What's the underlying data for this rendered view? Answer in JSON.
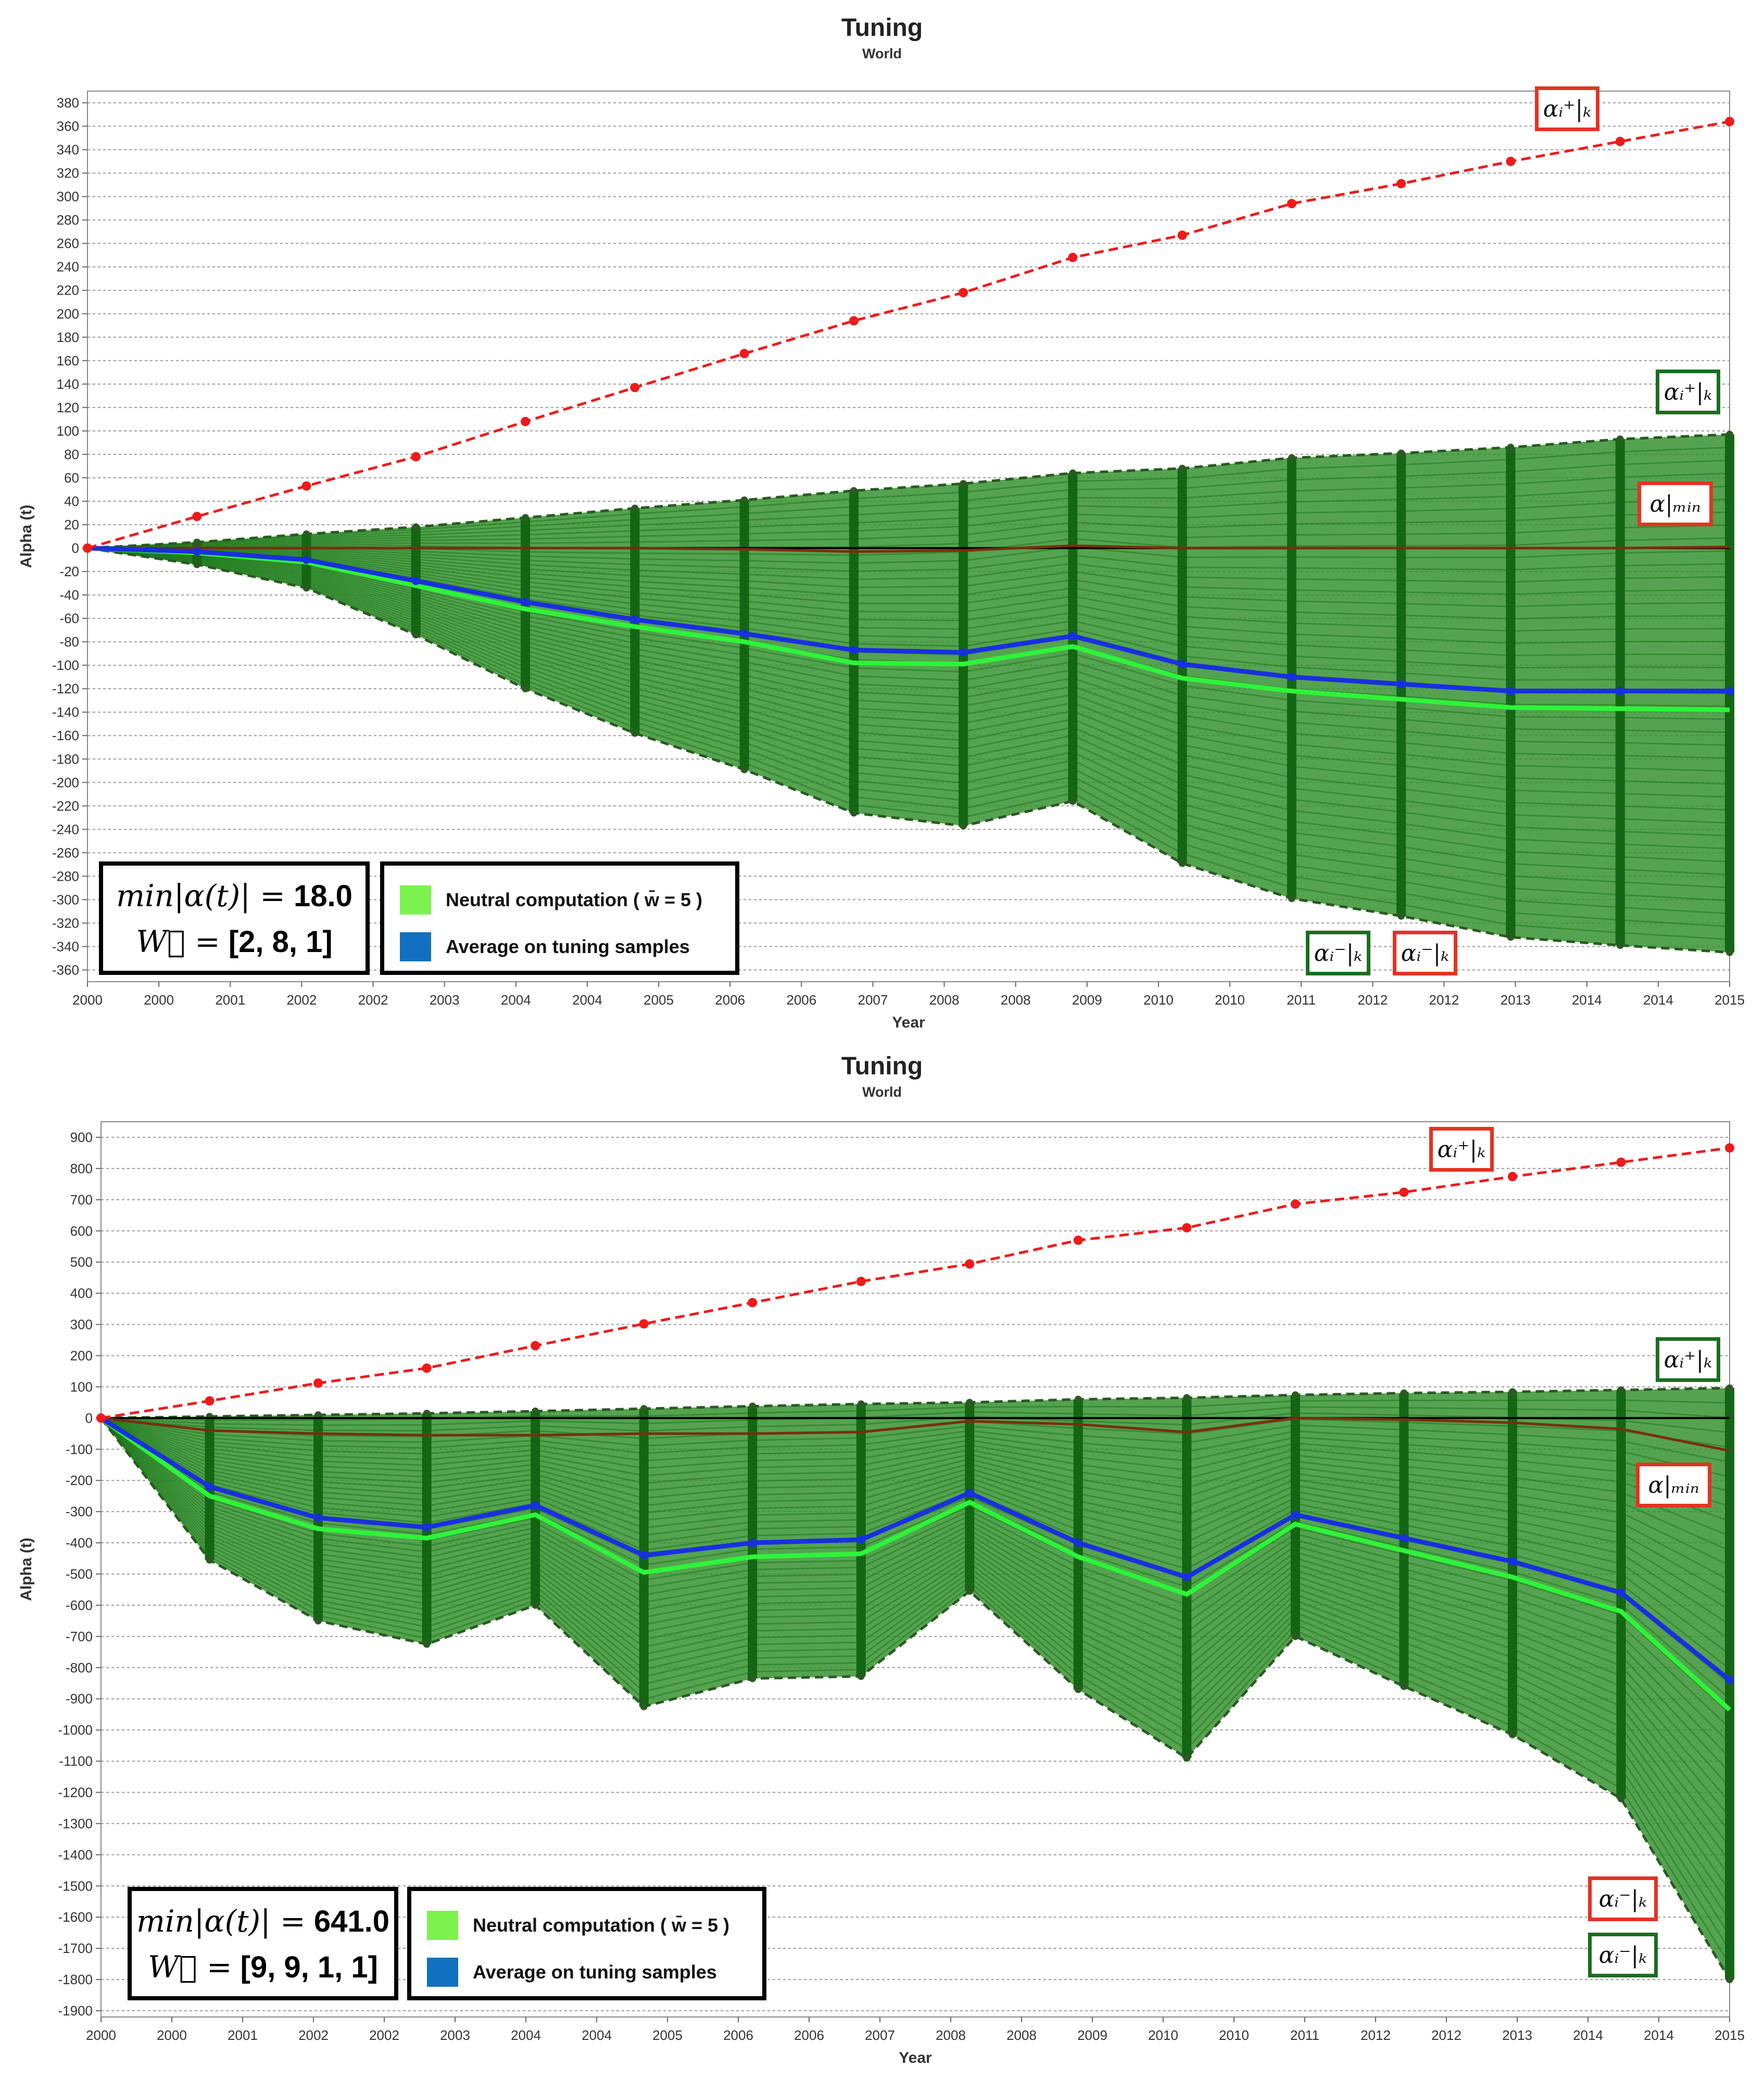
{
  "chart_data": [
    {
      "type": "line",
      "title": "Tuning",
      "subtitle": "World",
      "xlabel": "Year",
      "ylabel": "Alpha (t)",
      "ylim": [
        -370,
        390
      ],
      "y_tick_step": 20,
      "x_tick_labels": [
        "2000",
        "2000",
        "2001",
        "2002",
        "2002",
        "2003",
        "2004",
        "2004",
        "2005",
        "2006",
        "2006",
        "2007",
        "2008",
        "2008",
        "2009",
        "2010",
        "2010",
        "2011",
        "2012",
        "2012",
        "2013",
        "2014",
        "2014",
        "2015"
      ],
      "x": [
        0,
        1,
        2,
        3,
        4,
        5,
        6,
        7,
        8,
        9,
        10,
        11,
        12,
        13,
        14,
        15
      ],
      "grid": true,
      "series": [
        {
          "name": "alpha_plus_red",
          "values": [
            0,
            27,
            53,
            78,
            108,
            137,
            166,
            194,
            218,
            248,
            267,
            294,
            311,
            330,
            347,
            364
          ]
        },
        {
          "name": "alpha_plus_green",
          "values": [
            0,
            5,
            12,
            18,
            26,
            34,
            41,
            49,
            55,
            64,
            68,
            77,
            81,
            86,
            93,
            97
          ]
        },
        {
          "name": "alpha_min",
          "values": [
            0,
            0,
            0,
            0,
            0,
            0,
            -1,
            -3,
            -2,
            2,
            0,
            0,
            0,
            0,
            0,
            1
          ]
        },
        {
          "name": "Average on tuning samples",
          "values": [
            0,
            -3,
            -10,
            -28,
            -46,
            -61,
            -73,
            -87,
            -89,
            -75,
            -99,
            -110,
            -116,
            -122,
            -122,
            -122
          ]
        },
        {
          "name": "Neutral computation",
          "values": [
            0,
            -4,
            -12,
            -32,
            -52,
            -67,
            -80,
            -98,
            -99,
            -84,
            -111,
            -122,
            -129,
            -136,
            -137,
            -138
          ]
        },
        {
          "name": "alpha_minus",
          "values": [
            0,
            -14,
            -34,
            -74,
            -120,
            -158,
            -189,
            -226,
            -237,
            -216,
            -269,
            -299,
            -314,
            -332,
            -339,
            -345
          ]
        }
      ],
      "info": {
        "label": "min|α(t)| =",
        "min_value": "18.0",
        "w_label": "W⃗ =",
        "w_value": "[2, 8, 1]"
      },
      "legend": [
        {
          "label": "Neutral computation ( w̄ = 5 )",
          "color": "#7cf24f"
        },
        {
          "label": "Average on tuning samples",
          "color": "#1170c0"
        }
      ],
      "annotations": [
        {
          "label": "αᵢ⁺|ₖ",
          "color": "#e53222"
        },
        {
          "label": "αᵢ⁺|ₖ",
          "color": "#1b6e1f"
        },
        {
          "label": "α|ₘᵢₙ",
          "color": "#e53222"
        },
        {
          "label": "αᵢ⁻|ₖ",
          "color": "#1b6e1f"
        },
        {
          "label": "αᵢ⁻|ₖ",
          "color": "#e53222"
        }
      ]
    },
    {
      "type": "line",
      "title": "Tuning",
      "subtitle": "World",
      "xlabel": "Year",
      "ylabel": "Alpha (t)",
      "ylim": [
        -1920,
        950
      ],
      "y_tick_step": 100,
      "x_tick_labels": [
        "2000",
        "2000",
        "2001",
        "2002",
        "2002",
        "2003",
        "2004",
        "2004",
        "2005",
        "2006",
        "2006",
        "2007",
        "2008",
        "2008",
        "2009",
        "2010",
        "2010",
        "2011",
        "2012",
        "2012",
        "2013",
        "2014",
        "2014",
        "2015"
      ],
      "x": [
        0,
        1,
        2,
        3,
        4,
        5,
        6,
        7,
        8,
        9,
        10,
        11,
        12,
        13,
        14,
        15
      ],
      "grid": true,
      "series": [
        {
          "name": "alpha_plus_red",
          "values": [
            0,
            55,
            112,
            160,
            232,
            302,
            370,
            438,
            494,
            570,
            610,
            686,
            724,
            774,
            820,
            866
          ]
        },
        {
          "name": "alpha_plus_green",
          "values": [
            0,
            5,
            10,
            15,
            22,
            30,
            38,
            45,
            50,
            60,
            65,
            74,
            80,
            84,
            90,
            96
          ]
        },
        {
          "name": "alpha_min",
          "values": [
            0,
            -40,
            -50,
            -55,
            -55,
            -50,
            -50,
            -45,
            -10,
            -20,
            -45,
            0,
            -5,
            -15,
            -35,
            -105
          ]
        },
        {
          "name": "Average on tuning samples",
          "values": [
            0,
            -220,
            -320,
            -350,
            -280,
            -440,
            -400,
            -390,
            -240,
            -400,
            -510,
            -310,
            -385,
            -460,
            -560,
            -840
          ]
        },
        {
          "name": "Neutral computation",
          "values": [
            0,
            -250,
            -355,
            -385,
            -310,
            -495,
            -445,
            -435,
            -270,
            -445,
            -565,
            -340,
            -425,
            -510,
            -620,
            -935
          ]
        },
        {
          "name": "alpha_minus",
          "values": [
            0,
            -455,
            -650,
            -725,
            -600,
            -925,
            -835,
            -828,
            -555,
            -870,
            -1090,
            -700,
            -860,
            -1015,
            -1220,
            -1800
          ]
        }
      ],
      "info": {
        "label": "min|α(t)| =",
        "min_value": "641.0",
        "w_label": "W⃗ =",
        "w_value": "[9, 9, 1, 1]"
      },
      "legend": [
        {
          "label": "Neutral computation ( w̄ = 5 )",
          "color": "#7cf24f"
        },
        {
          "label": "Average on tuning samples",
          "color": "#1170c0"
        }
      ],
      "annotations": [
        {
          "label": "αᵢ⁺|ₖ",
          "color": "#e53222"
        },
        {
          "label": "αᵢ⁺|ₖ",
          "color": "#1b6e1f"
        },
        {
          "label": "α|ₘᵢₙ",
          "color": "#e53222"
        },
        {
          "label": "αᵢ⁻|ₖ",
          "color": "#e53222"
        },
        {
          "label": "αᵢ⁻|ₖ",
          "color": "#1b6e1f"
        }
      ]
    }
  ]
}
